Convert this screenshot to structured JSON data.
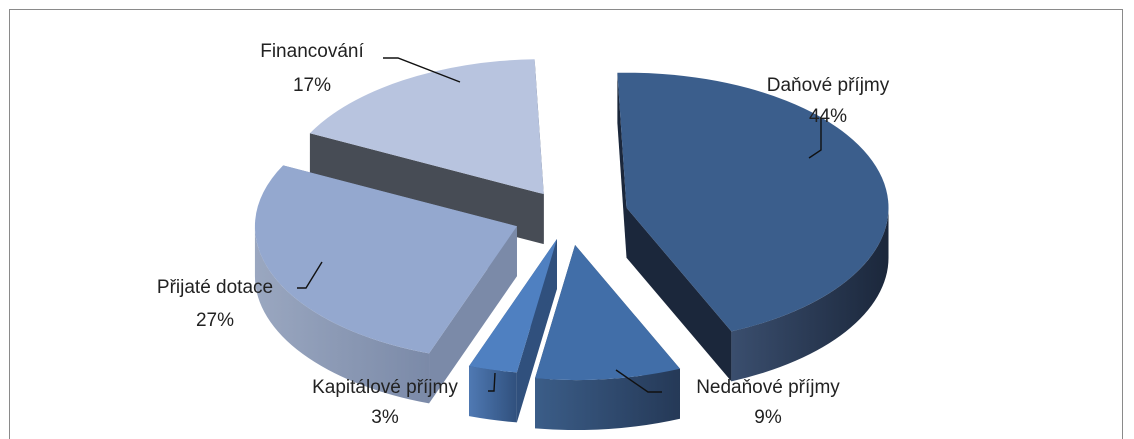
{
  "chart_data": {
    "type": "pie",
    "title": "",
    "series": [
      {
        "values": [
          44,
          9,
          3,
          27,
          17
        ],
        "categories": [
          "Daňové příjmy",
          "Nedaňové příjmy",
          "Kapitálové příjmy",
          "Přijaté dotace",
          "Financování"
        ],
        "labels": [
          "44%",
          "9%",
          "3%",
          "27%",
          "17%"
        ]
      }
    ],
    "colors": {
      "top": [
        "#3b5e8c",
        "#416ea8",
        "#4f80c1",
        "#94a8cf",
        "#b8c4df"
      ],
      "side": [
        "#1b273b",
        "#253957",
        "#30507d",
        "#7b8aa8",
        "#474c55"
      ],
      "side_light": [
        "#3a4e6e",
        "#3b5d88",
        "#4f79b3",
        "#9aa7c0",
        "#676d78"
      ]
    },
    "legend": "none",
    "style": "3d-exploded"
  }
}
